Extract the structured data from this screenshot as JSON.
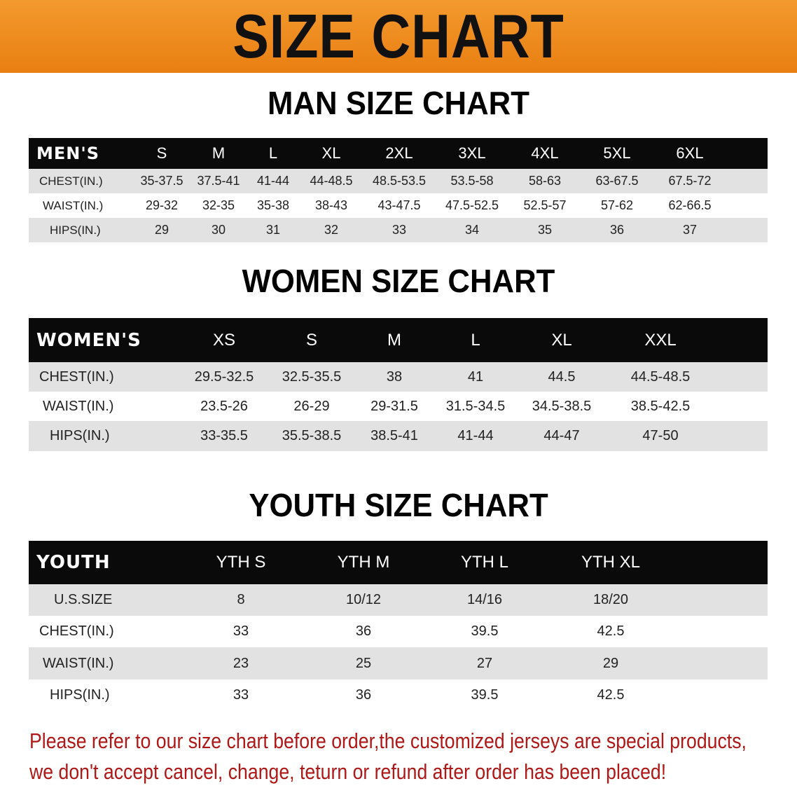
{
  "banner_title": "SIZE CHART",
  "men": {
    "title": "MAN SIZE CHART",
    "header": [
      "MEN'S",
      "S",
      "M",
      "L",
      "XL",
      "2XL",
      "3XL",
      "4XL",
      "5XL",
      "6XL"
    ],
    "rows": [
      [
        "CHEST(IN.)",
        "35-37.5",
        "37.5-41",
        "41-44",
        "44-48.5",
        "48.5-53.5",
        "53.5-58",
        "58-63",
        "63-67.5",
        "67.5-72"
      ],
      [
        "WAIST(IN.)",
        "29-32",
        "32-35",
        "35-38",
        "38-43",
        "43-47.5",
        "47.5-52.5",
        "52.5-57",
        "57-62",
        "62-66.5"
      ],
      [
        "HIPS(IN.)",
        "29",
        "30",
        "31",
        "32",
        "33",
        "34",
        "35",
        "36",
        "37"
      ]
    ]
  },
  "women": {
    "title": "WOMEN SIZE CHART",
    "header": [
      "WOMEN'S",
      "XS",
      "S",
      "M",
      "L",
      "XL",
      "XXL"
    ],
    "rows": [
      [
        "CHEST(IN.)",
        "29.5-32.5",
        "32.5-35.5",
        "38",
        "41",
        "44.5",
        "44.5-48.5"
      ],
      [
        "WAIST(IN.)",
        "23.5-26",
        "26-29",
        "29-31.5",
        "31.5-34.5",
        "34.5-38.5",
        "38.5-42.5"
      ],
      [
        "HIPS(IN.)",
        "33-35.5",
        "35.5-38.5",
        "38.5-41",
        "41-44",
        "44-47",
        "47-50"
      ]
    ]
  },
  "youth": {
    "title": "YOUTH SIZE CHART",
    "header": [
      "YOUTH",
      "YTH S",
      "YTH M",
      "YTH L",
      "YTH XL"
    ],
    "rows": [
      [
        "U.S.SIZE",
        "8",
        "10/12",
        "14/16",
        "18/20"
      ],
      [
        "CHEST(IN.)",
        "33",
        "36",
        "39.5",
        "42.5"
      ],
      [
        "WAIST(IN.)",
        "23",
        "25",
        "27",
        "29"
      ],
      [
        "HIPS(IN.)",
        "33",
        "36",
        "39.5",
        "42.5"
      ]
    ]
  },
  "note": {
    "line1": "Please refer to our size chart before order,the customized jerseys are special products,",
    "line2": "we don't accept cancel, change, teturn or refund after order has been placed!"
  },
  "colors": {
    "banner": "#ef8a1f",
    "header_bg": "#0a0a0a",
    "row_gray": "#e2e2e2",
    "note": "#b01818"
  }
}
